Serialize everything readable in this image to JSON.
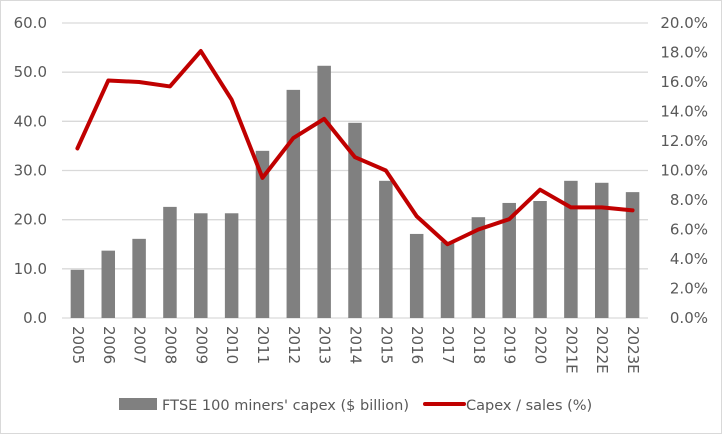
{
  "chart_data": {
    "type": "bar",
    "title": "",
    "xlabel": "",
    "ylabel": "",
    "y2label": "",
    "categories": [
      "2005",
      "2006",
      "2007",
      "2008",
      "2009",
      "2010",
      "2011",
      "2012",
      "2013",
      "2014",
      "2015",
      "2016",
      "2017",
      "2018",
      "2019",
      "2020",
      "2021E",
      "2022E",
      "2023E"
    ],
    "series": [
      {
        "name": "FTSE 100 miners' capex ($ billion)",
        "type": "bar",
        "axis": "left",
        "color": "#808080",
        "values": [
          9.8,
          13.7,
          16.1,
          22.6,
          21.3,
          21.3,
          34.0,
          46.4,
          51.3,
          39.7,
          27.9,
          17.1,
          15.5,
          20.5,
          23.4,
          23.8,
          27.9,
          27.5,
          25.6
        ]
      },
      {
        "name": "Capex / sales (%)",
        "type": "line",
        "axis": "right",
        "color": "#c00000",
        "values": [
          11.5,
          16.1,
          16.0,
          15.7,
          18.1,
          14.8,
          9.5,
          12.2,
          13.5,
          10.9,
          10.0,
          6.9,
          5.0,
          6.0,
          6.7,
          8.7,
          7.5,
          7.5,
          7.3
        ]
      }
    ],
    "ylim": [
      0,
      60
    ],
    "y_ticks": [
      "0.0",
      "10.0",
      "20.0",
      "30.0",
      "40.0",
      "50.0",
      "60.0"
    ],
    "y2lim": [
      0,
      20
    ],
    "y2_ticks": [
      "0.0%",
      "2.0%",
      "4.0%",
      "6.0%",
      "8.0%",
      "10.0%",
      "12.0%",
      "14.0%",
      "16.0%",
      "18.0%",
      "20.0%"
    ],
    "grid": true,
    "legend_position": "bottom"
  }
}
